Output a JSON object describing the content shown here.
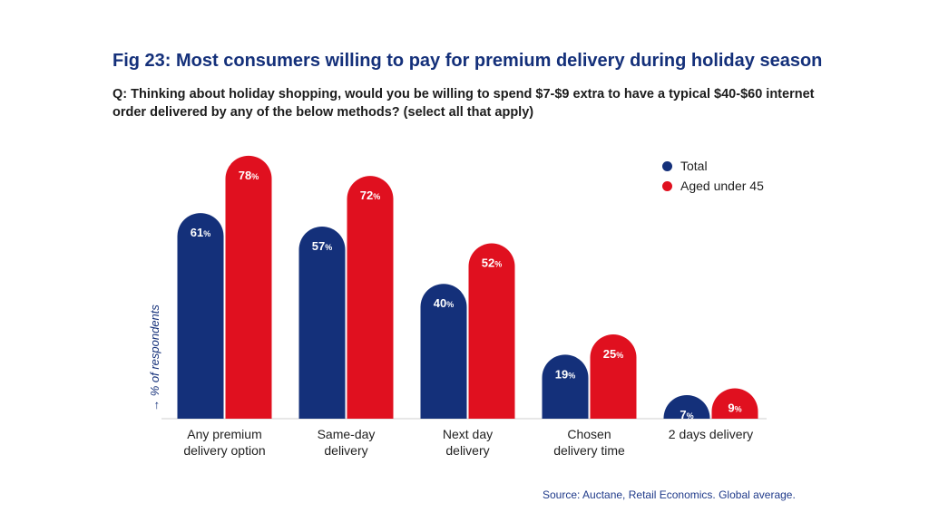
{
  "title": "Fig 23: Most consumers willing to pay for premium delivery during holiday season",
  "question": "Q: Thinking about holiday shopping, would you be willing to spend $7-$9 extra to have a typical $40-$60 internet order delivered by any of the below methods? (select all that apply)",
  "source": "Source: Auctane, Retail Economics. Global average.",
  "colors": {
    "total": "#14307a",
    "aged_under_45": "#e0101f",
    "text": "#1f1f1f"
  },
  "chart_data": {
    "type": "bar",
    "categories": [
      [
        "Any premium",
        "delivery option"
      ],
      [
        "Same-day",
        "delivery"
      ],
      [
        "Next day",
        "delivery"
      ],
      [
        "Chosen",
        "delivery time"
      ],
      [
        "2 days delivery"
      ]
    ],
    "series": [
      {
        "name": "Total",
        "values": [
          61,
          57,
          40,
          19,
          7
        ]
      },
      {
        "name": "Aged under 45",
        "values": [
          78,
          72,
          52,
          25,
          9
        ]
      }
    ],
    "value_suffix": "%",
    "ylabel": "→ % of respondents",
    "ylim": [
      0,
      80
    ],
    "grid": false,
    "legend": "top-right"
  }
}
